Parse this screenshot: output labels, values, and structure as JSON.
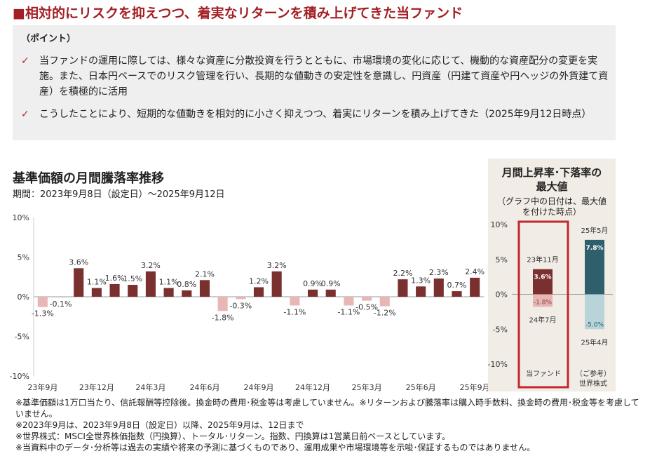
{
  "headline": "■相対的にリスクを抑えつつ、着実なリターンを積み上げてきた当ファンド",
  "point_box": {
    "heading": "（ポイント）",
    "check_glyph": "✓",
    "bullets": [
      "当ファンドの運用に際しては、様々な資産に分散投資を行うとともに、市場環境の変化に応じて、機動的な資産配分の変更を実施。また、日本円ベースでのリスク管理を行い、長期的な値動きの安定性を意識し、円資産（円建て資産や円ヘッジの外貨建て資産）を積極的に活用",
      "こうしたことにより、短期的な値動きを相対的に小さく抑えつつ、着実にリターンを積み上げてきた（2025年9月12日時点）"
    ]
  },
  "chart_title": "基準価額の月間騰落率推移",
  "chart_subtitle": "期間：2023年9月8日（設定日）～2025年9月12日",
  "chart_data": [
    {
      "type": "bar",
      "title": "基準価額の月間騰落率推移",
      "ylim": [
        -10,
        10
      ],
      "yticks": [
        "10%",
        "5%",
        "0%",
        "-5%",
        "-10%"
      ],
      "ytick_values": [
        10,
        5,
        0,
        -5,
        -10
      ],
      "x_tick_labels": [
        "23年9月",
        "23年12月",
        "24年3月",
        "24年6月",
        "24年9月",
        "24年12月",
        "25年3月",
        "25年6月",
        "25年9月"
      ],
      "x_tick_indices": [
        0,
        3,
        6,
        9,
        12,
        15,
        18,
        21,
        24
      ],
      "categories": [
        "23年9月",
        "23年10月",
        "23年11月",
        "23年12月",
        "24年1月",
        "24年2月",
        "24年3月",
        "24年4月",
        "24年5月",
        "24年6月",
        "24年7月",
        "24年8月",
        "24年9月",
        "24年10月",
        "24年11月",
        "24年12月",
        "25年1月",
        "25年2月",
        "25年3月",
        "25年4月",
        "25年5月",
        "25年6月",
        "25年7月",
        "25年8月",
        "25年9月"
      ],
      "values": [
        -1.3,
        -0.1,
        3.6,
        1.1,
        1.6,
        1.5,
        3.2,
        1.1,
        0.8,
        2.1,
        -1.8,
        -0.3,
        1.2,
        3.2,
        -1.1,
        0.9,
        0.9,
        -1.1,
        -0.5,
        -1.2,
        2.2,
        1.3,
        2.3,
        0.7,
        2.4
      ],
      "data_labels": [
        "-1.3%",
        "-0.1%",
        "3.6%",
        "1.1%",
        "1.6%",
        "1.5%",
        "3.2%",
        "1.1%",
        "0.8%",
        "2.1%",
        "-1.8%",
        "-0.3%",
        "1.2%",
        "3.2%",
        "-1.1%",
        "0.9%",
        "0.9%",
        "-1.1%",
        "-0.5%",
        "-1.2%",
        "2.2%",
        "1.3%",
        "2.3%",
        "0.7%",
        "2.4%"
      ],
      "colors": {
        "positive": "#7b3030",
        "negative": "#e8b7b5",
        "axis": "#999999"
      },
      "grid": false
    },
    {
      "type": "bar",
      "title": "月間上昇率・下落率の最大値",
      "ylim": [
        -10,
        10
      ],
      "yticks": [
        "10%",
        "5%",
        "0%",
        "-5%",
        "-10%"
      ],
      "ytick_values": [
        10,
        5,
        0,
        -5,
        -10
      ],
      "categories": [
        "当ファンド",
        "（ご参考）世界株式"
      ],
      "series": [
        {
          "name": "上昇率",
          "values": [
            3.6,
            7.8
          ],
          "labels": [
            "3.6%",
            "7.8%"
          ],
          "dates": [
            "23年11月",
            "25年5月"
          ]
        },
        {
          "name": "下落率",
          "values": [
            -1.8,
            -5.0
          ],
          "labels": [
            "-1.8%",
            "-5.0%"
          ],
          "dates": [
            "24年7月",
            "25年4月"
          ]
        }
      ],
      "colors": {
        "fund_up": "#7b3030",
        "fund_down": "#e8b7b5",
        "world_up": "#2f5f6b",
        "world_down": "#b8d4d9",
        "highlight": "#c0282d"
      },
      "grid": false
    }
  ],
  "side_panel": {
    "title_line1": "月間上昇率･下落率の",
    "title_line2": "最大値",
    "note_line1": "（グラフ中の日付は、最大値",
    "note_line2": "を付けた時点）",
    "fund_label": "当ファンド",
    "world_label_line1": "（ご参考）",
    "world_label_line2": "世界株式"
  },
  "footnotes": [
    "※基準価額は1万口当たり、信託報酬等控除後。換金時の費用･税金等は考慮していません。※リターンおよび騰落率は購入時手数料、換金時の費用･税金等を考慮していません。",
    "※2023年9月は、2023年9月8日（設定日）以降、2025年9月は、12日まで",
    "※世界株式：MSCI全世界株価指数（円換算）、トータル･リターン。指数、円換算は1営業日前ベースとしています。",
    "※当資料中のデータ･分析等は過去の実績や将来の予測に基づくものであり、運用成果や市場環境等を示唆･保証するものではありません。"
  ]
}
